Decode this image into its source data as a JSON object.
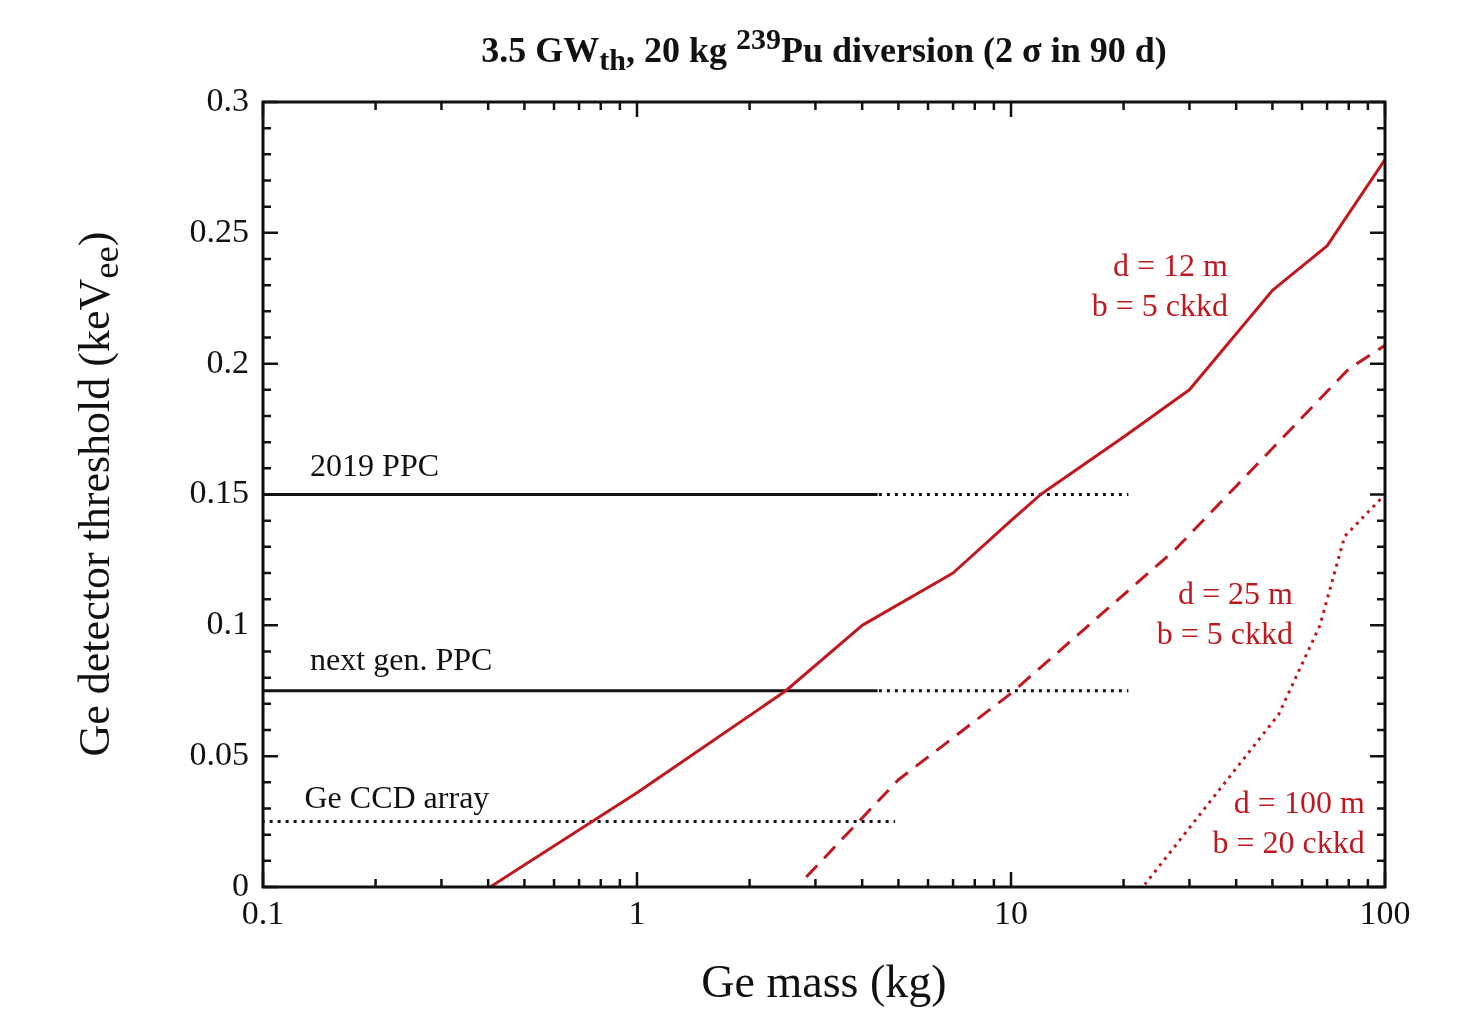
{
  "chart_data": {
    "type": "line",
    "title": "3.5 GW$_{th}$, 20 kg $^{239}$Pu diversion (2 σ in 90 d)",
    "xlabel": "Ge mass (kg)",
    "ylabel": "Ge detector threshold (keV$_{ee}$)",
    "log": "x",
    "grid": false,
    "legend": false,
    "marker": "none",
    "xlim": [
      0.1,
      100
    ],
    "xticks": [
      0.1,
      {
        "value": 0.2,
        "label": null
      },
      {
        "value": 0.3,
        "label": null
      },
      {
        "value": 0.4,
        "label": null
      },
      {
        "value": 0.5,
        "label": null
      },
      {
        "value": 0.6,
        "label": null
      },
      {
        "value": 0.7,
        "label": null
      },
      {
        "value": 0.8,
        "label": null
      },
      {
        "value": 0.9,
        "label": null
      },
      1,
      {
        "value": 2,
        "label": null
      },
      {
        "value": 3,
        "label": null
      },
      {
        "value": 4,
        "label": null
      },
      {
        "value": 5,
        "label": null
      },
      {
        "value": 6,
        "label": null
      },
      {
        "value": 7,
        "label": null
      },
      {
        "value": 8,
        "label": null
      },
      {
        "value": 9,
        "label": null
      },
      10,
      {
        "value": 20,
        "label": null
      },
      {
        "value": 30,
        "label": null
      },
      {
        "value": 40,
        "label": null
      },
      {
        "value": 50,
        "label": null
      },
      {
        "value": 60,
        "label": null
      },
      {
        "value": 70,
        "label": null
      },
      {
        "value": 80,
        "label": null
      },
      {
        "value": 90,
        "label": null
      },
      100
    ],
    "ylim": [
      0,
      0.3
    ],
    "yticks": [
      0,
      {
        "value": 0.01,
        "label": null
      },
      {
        "value": 0.02,
        "label": null
      },
      {
        "value": 0.03,
        "label": null
      },
      {
        "value": 0.04,
        "label": null
      },
      0.05,
      {
        "value": 0.06,
        "label": null
      },
      {
        "value": 0.07,
        "label": null
      },
      {
        "value": 0.08,
        "label": null
      },
      {
        "value": 0.09,
        "label": null
      },
      0.1,
      {
        "value": 0.11,
        "label": null
      },
      {
        "value": 0.12,
        "label": null
      },
      {
        "value": 0.13,
        "label": null
      },
      {
        "value": 0.14,
        "label": null
      },
      0.15,
      {
        "value": 0.16,
        "label": null
      },
      {
        "value": 0.17,
        "label": null
      },
      {
        "value": 0.18,
        "label": null
      },
      {
        "value": 0.19,
        "label": null
      },
      0.2,
      {
        "value": 0.21,
        "label": null
      },
      {
        "value": 0.22,
        "label": null
      },
      {
        "value": 0.23,
        "label": null
      },
      {
        "value": 0.24,
        "label": null
      },
      0.25,
      {
        "value": 0.26,
        "label": null
      },
      {
        "value": 0.27,
        "label": null
      },
      {
        "value": 0.28,
        "label": null
      },
      {
        "value": 0.29,
        "label": null
      },
      0.3
    ],
    "series": [
      {
        "name": "d = 12 m\nb = 5 ckkd",
        "color": "#c0181f",
        "line_style": "solid",
        "x": [
          0.405,
          1,
          2.5,
          4,
          7,
          10,
          12,
          20,
          30,
          50,
          70,
          100
        ],
        "values": [
          0,
          0.036,
          0.075,
          0.1,
          0.12,
          0.14,
          0.15,
          0.172,
          0.19,
          0.228,
          0.245,
          0.278
        ]
      },
      {
        "name": "d = 25 m\nb = 5 ckkd",
        "color": "#c0181f",
        "line_style": "dashed",
        "x": [
          2.8,
          5,
          10,
          27.5,
          80,
          100
        ],
        "values": [
          0.003,
          0.041,
          0.074,
          0.129,
          0.198,
          0.207
        ]
      },
      {
        "name": "d = 100 m\nb = 20 ckkd",
        "color": "#c0181f",
        "line_style": "dotted",
        "x": [
          22.8,
          36,
          52,
          67,
          78,
          100
        ],
        "values": [
          0.001,
          0.037,
          0.066,
          0.1,
          0.134,
          0.15
        ]
      },
      {
        "color": "#111111",
        "line_style": "solid",
        "x": [
          0.1,
          4.4
        ],
        "values": [
          0.15,
          0.15
        ]
      },
      {
        "color": "#111111",
        "line_style": "dotted",
        "x": [
          4.4,
          20.6
        ],
        "values": [
          0.15,
          0.15
        ]
      },
      {
        "color": "#111111",
        "line_style": "solid",
        "x": [
          0.1,
          4.4
        ],
        "values": [
          0.075,
          0.075
        ]
      },
      {
        "color": "#111111",
        "line_style": "dotted",
        "x": [
          4.4,
          20.6
        ],
        "values": [
          0.075,
          0.075
        ]
      },
      {
        "color": "#111111",
        "line_style": "dotted",
        "x": [
          0.1,
          4.9
        ],
        "values": [
          0.025,
          0.025
        ]
      }
    ],
    "annotations": [
      "2019 PPC",
      "next gen. PPC",
      "Ge CCD array"
    ]
  }
}
